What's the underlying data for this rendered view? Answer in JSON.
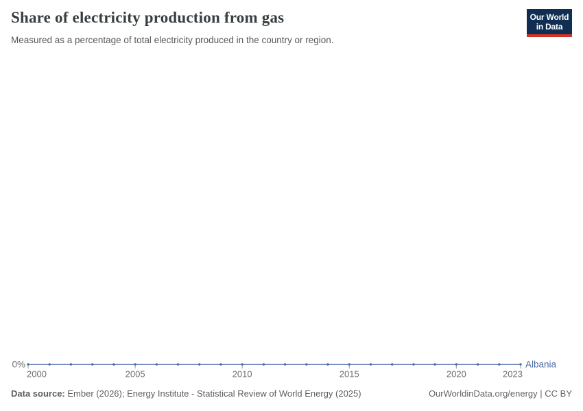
{
  "header": {
    "title": "Share of electricity production from gas",
    "subtitle": "Measured as a percentage of total electricity produced in the country or region.",
    "logo": {
      "line1": "Our World",
      "line2": "in Data",
      "bg_color": "#0f2e52",
      "bar_color": "#d13426"
    }
  },
  "chart_data": {
    "type": "line",
    "title": "Share of electricity production from gas",
    "xlabel": "",
    "ylabel": "",
    "xlim": [
      2000,
      2023
    ],
    "x_ticks": [
      2000,
      2005,
      2010,
      2015,
      2020,
      2023
    ],
    "y_axis": {
      "tick_label": "0%",
      "unit": "%"
    },
    "grid": "off",
    "legend_position": "end-of-line",
    "series": [
      {
        "name": "Albania",
        "color": "#4c6ba8",
        "x": [
          2000,
          2001,
          2002,
          2003,
          2004,
          2005,
          2006,
          2007,
          2008,
          2009,
          2010,
          2011,
          2012,
          2013,
          2014,
          2015,
          2016,
          2017,
          2018,
          2019,
          2020,
          2021,
          2022,
          2023
        ],
        "values": [
          0,
          0,
          0,
          0,
          0,
          0,
          0,
          0,
          0,
          0,
          0,
          0,
          0,
          0,
          0,
          0,
          0,
          0,
          0,
          0,
          0,
          0,
          0,
          0
        ]
      }
    ],
    "axis_text_color": "#6e6e6e",
    "tick_mark_color": "#9b9b9b"
  },
  "footer": {
    "data_source_label": "Data source:",
    "data_source_text": "Ember (2026); Energy Institute - Statistical Review of World Energy (2025)",
    "right_text": "OurWorldinData.org/energy | CC BY"
  }
}
